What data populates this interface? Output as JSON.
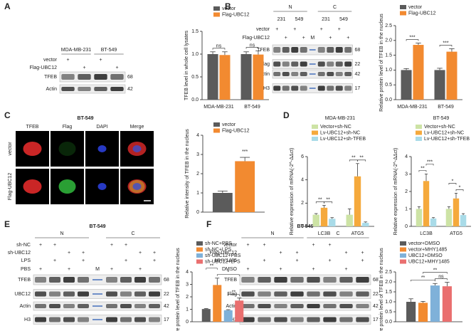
{
  "panels": [
    "A",
    "B",
    "C",
    "D",
    "E",
    "F"
  ],
  "blots": [
    {
      "groups": [
        {
          "label": "MDA-MB-231",
          "lanes": [
            0,
            1
          ]
        },
        {
          "label": "BT-549",
          "lanes": [
            2,
            3
          ]
        }
      ],
      "lanes": 4,
      "conditions": [
        {
          "label": "vector",
          "marks": [
            "+",
            null,
            "+",
            null
          ]
        },
        {
          "label": "Flag-UBC12",
          "marks": [
            null,
            "+",
            null,
            "+"
          ]
        }
      ],
      "bands": [
        {
          "label": "TFEB",
          "kda": 68
        },
        {
          "label": "Actin",
          "kda": 42
        }
      ]
    },
    {
      "groups": [
        {
          "label": "N",
          "lanes": [
            0,
            3
          ]
        },
        {
          "label": "C",
          "lanes": [
            5,
            8
          ]
        }
      ],
      "subgroups": [
        {
          "label": "231",
          "lanes": [
            0,
            1
          ]
        },
        {
          "label": "549",
          "lanes": [
            2,
            3
          ]
        },
        {
          "label": "231",
          "lanes": [
            5,
            6
          ]
        },
        {
          "label": "549",
          "lanes": [
            7,
            8
          ]
        }
      ],
      "lanes": 9,
      "marker": {
        "label": "M",
        "lane": 4
      },
      "conditions": [
        {
          "label": "vector",
          "marks": [
            "+",
            null,
            "+",
            null,
            null,
            "+",
            null,
            "+",
            null
          ]
        },
        {
          "label": "Flag-UBC12",
          "marks": [
            null,
            "+",
            null,
            "+",
            null,
            null,
            "+",
            null,
            "+"
          ]
        }
      ],
      "bands": [
        {
          "label": "TFEB",
          "kda": 68
        },
        {
          "label": "Flag",
          "kda": 22
        },
        {
          "label": "Actin",
          "kda": 42
        },
        {
          "label": "H3",
          "kda": 17
        }
      ]
    },
    {
      "title": "BT-549",
      "groups": [
        {
          "label": "N",
          "lanes": [
            0,
            3
          ]
        },
        {
          "label": "C",
          "lanes": [
            5,
            8
          ]
        }
      ],
      "lanes": 9,
      "marker": {
        "label": "M",
        "lane": 4
      },
      "conditions": [
        {
          "label": "sh-NC",
          "marks": [
            "+",
            "+",
            null,
            null,
            null,
            "+",
            "+",
            null,
            null
          ]
        },
        {
          "label": "sh-UBC12",
          "marks": [
            null,
            null,
            "+",
            "+",
            null,
            null,
            null,
            "+",
            "+"
          ]
        },
        {
          "label": "LPS",
          "marks": [
            null,
            "+",
            null,
            "+",
            null,
            null,
            "+",
            null,
            "+"
          ]
        },
        {
          "label": "PBS",
          "marks": [
            "+",
            null,
            "+",
            null,
            null,
            "+",
            null,
            "+",
            null
          ]
        }
      ],
      "bands": [
        {
          "label": "TFEB",
          "kda": 68
        },
        {
          "label": "UBC12",
          "kda": 22
        },
        {
          "label": "Actin",
          "kda": 42
        },
        {
          "label": "H3",
          "kda": 17
        }
      ]
    },
    {
      "title": "BT-549",
      "groups": [
        {
          "label": "N",
          "lanes": [
            0,
            3
          ]
        },
        {
          "label": "C",
          "lanes": [
            4,
            7
          ]
        }
      ],
      "lanes": 8,
      "conditions": [
        {
          "label": "vector",
          "marks": [
            "+",
            "+",
            null,
            null,
            "+",
            "+",
            null,
            null
          ]
        },
        {
          "label": "Flag-UBC12",
          "marks": [
            null,
            null,
            "+",
            "+",
            null,
            null,
            "+",
            "+"
          ]
        },
        {
          "label": "MHY1485",
          "marks": [
            null,
            "+",
            null,
            "+",
            null,
            "+",
            null,
            "+"
          ]
        },
        {
          "label": "DMSO",
          "marks": [
            "+",
            null,
            "+",
            null,
            "+",
            null,
            "+",
            null
          ]
        }
      ],
      "bands": [
        {
          "label": "TFEB",
          "kda": 68
        },
        {
          "label": "Flag",
          "kda": 22
        },
        {
          "label": "Actin",
          "kda": 42
        },
        {
          "label": "H3",
          "kda": 17
        }
      ]
    }
  ],
  "microscopy": {
    "title": "BT-549",
    "columns": [
      "TFEB",
      "Flag",
      "DAPI",
      "Merge"
    ],
    "rows": [
      "vector",
      "Flag-UBC12"
    ]
  },
  "chart_data": [
    {
      "type": "bar",
      "ylabel": "TFEB level in whole cell lysates",
      "categories": [
        "MDA-MB-231",
        "BT-549"
      ],
      "series": [
        {
          "name": "vector",
          "color": "#5b5b5b",
          "values": [
            1.0,
            1.0
          ],
          "errors": [
            0.05,
            0.05
          ]
        },
        {
          "name": "Flag-UBC12",
          "color": "#f28a30",
          "values": [
            0.98,
            0.99
          ],
          "errors": [
            0.07,
            0.08
          ]
        }
      ],
      "ylim": [
        0,
        1.5
      ],
      "yticks": [
        {
          "value": 0,
          "label": "0.0"
        },
        {
          "value": 0.5,
          "label": "0.5"
        },
        {
          "value": 1,
          "label": "1.0"
        },
        {
          "value": 1.5,
          "label": "1.5"
        }
      ],
      "annotations": [
        "ns",
        "ns"
      ]
    },
    {
      "type": "bar",
      "ylabel": "Relative protein level of TFEB in the nucleus",
      "categories": [
        "MDA-MB-231",
        "BT-549"
      ],
      "series": [
        {
          "name": "vector",
          "color": "#5b5b5b",
          "values": [
            1.0,
            1.0
          ],
          "errors": [
            0.05,
            0.06
          ]
        },
        {
          "name": "Flag-UBC12",
          "color": "#f28a30",
          "values": [
            1.85,
            1.62
          ],
          "errors": [
            0.06,
            0.1
          ]
        }
      ],
      "ylim": [
        0,
        2.5
      ],
      "yticks": [
        {
          "value": 0,
          "label": "0.0"
        },
        {
          "value": 0.5,
          "label": "0.5"
        },
        {
          "value": 1,
          "label": "1.0"
        },
        {
          "value": 1.5,
          "label": "1.5"
        },
        {
          "value": 2,
          "label": "2.0"
        },
        {
          "value": 2.5,
          "label": "2.5"
        }
      ],
      "annotations": [
        "***",
        "***"
      ]
    },
    {
      "type": "bar",
      "ylabel": "Relative intensity of TFEB in the nucleus",
      "categories": [
        null
      ],
      "series": [
        {
          "name": "vector",
          "color": "#5b5b5b",
          "values": [
            1.0
          ],
          "errors": [
            0.1
          ]
        },
        {
          "name": "Flag-UBC12",
          "color": "#f28a30",
          "values": [
            2.65
          ],
          "errors": [
            0.2
          ]
        }
      ],
      "ylim": [
        0,
        4
      ],
      "yticks": [
        0,
        1,
        2,
        3,
        4
      ],
      "annotations": [
        "***"
      ]
    },
    {
      "type": "bar",
      "title": "MDA-MB-231",
      "ylabel": "Relative expression of mRNA(-2^-ΔΔct)",
      "categories": [
        "LC3B",
        "ATG5"
      ],
      "series": [
        {
          "name": "Vector+sh-NC",
          "color": "#cde3a5",
          "values": [
            1.0,
            1.0
          ],
          "errors": [
            0.1,
            0.5
          ]
        },
        {
          "name": "Lv-UBC12+sh-NC",
          "color": "#f5a93c",
          "values": [
            1.6,
            4.3
          ],
          "errors": [
            0.2,
            1.1
          ]
        },
        {
          "name": "Lv-UBC12+sh-TFEB",
          "color": "#a9dbe8",
          "values": [
            0.65,
            0.3
          ],
          "errors": [
            0.1,
            0.08
          ]
        }
      ],
      "ylim": [
        0,
        6
      ],
      "yticks": [
        0,
        2,
        4,
        6
      ],
      "annotations": [
        "**",
        "**",
        "**",
        "**"
      ]
    },
    {
      "type": "bar",
      "title": "BT-549",
      "ylabel": "Relative expression of mRNA(-2^-ΔΔct)",
      "categories": [
        "LC3B",
        "ATG5"
      ],
      "series": [
        {
          "name": "Vector+sh-NC",
          "color": "#cde3a5",
          "values": [
            1.0,
            1.0
          ],
          "errors": [
            0.12,
            0.12
          ]
        },
        {
          "name": "Lv-UBC12+sh-NC",
          "color": "#f5a93c",
          "values": [
            2.6,
            1.6
          ],
          "errors": [
            0.4,
            0.3
          ]
        },
        {
          "name": "Lv-UBC12+sh-TFEB",
          "color": "#a9dbe8",
          "values": [
            0.45,
            0.65
          ],
          "errors": [
            0.05,
            0.08
          ]
        }
      ],
      "ylim": [
        0,
        4
      ],
      "yticks": [
        0,
        1,
        2,
        3,
        4
      ],
      "annotations": [
        "**",
        "***",
        "*",
        "*"
      ]
    },
    {
      "type": "bar",
      "ylabel": "Relative protein level of TFEB in the nucleus",
      "categories": [
        null
      ],
      "series": [
        {
          "name": "sh-NC+PBS",
          "color": "#5b5b5b",
          "values": [
            1.02
          ],
          "errors": [
            0.04
          ]
        },
        {
          "name": "sh-NC+LPS",
          "color": "#f28a30",
          "values": [
            2.95
          ],
          "errors": [
            0.55
          ]
        },
        {
          "name": "sh-UBC12+PBS",
          "color": "#7fb1d9",
          "values": [
            0.92
          ],
          "errors": [
            0.05
          ]
        },
        {
          "name": "sh-UBC12+LPS",
          "color": "#ea6f6f",
          "values": [
            1.7
          ],
          "errors": [
            0.2
          ]
        }
      ],
      "ylim": [
        0,
        4
      ],
      "yticks": [
        0,
        1,
        2,
        3,
        4
      ],
      "annotations": [
        "**",
        "*",
        "**"
      ]
    },
    {
      "type": "bar",
      "ylabel": "Relative protein level of TFEB in the nucleus",
      "categories": [
        null
      ],
      "series": [
        {
          "name": "vector+DMSO",
          "color": "#5b5b5b",
          "values": [
            1.0
          ],
          "errors": [
            0.15
          ]
        },
        {
          "name": "vector+MHY1485",
          "color": "#f28a30",
          "values": [
            0.95
          ],
          "errors": [
            0.07
          ]
        },
        {
          "name": "UBC12+DMSO",
          "color": "#7fb1d9",
          "values": [
            1.82
          ],
          "errors": [
            0.1
          ]
        },
        {
          "name": "UBC12+MHY1485",
          "color": "#ea6f6f",
          "values": [
            1.78
          ],
          "errors": [
            0.2
          ]
        }
      ],
      "ylim": [
        0,
        2.5
      ],
      "yticks": [
        {
          "value": 0,
          "label": "0.0"
        },
        {
          "value": 0.5,
          "label": "0.5"
        },
        {
          "value": 1,
          "label": "1.0"
        },
        {
          "value": 1.5,
          "label": "1.5"
        },
        {
          "value": 2,
          "label": "2.0"
        },
        {
          "value": 2.5,
          "label": "2.5"
        }
      ],
      "annotations": [
        "**",
        "**",
        "ns"
      ]
    }
  ]
}
